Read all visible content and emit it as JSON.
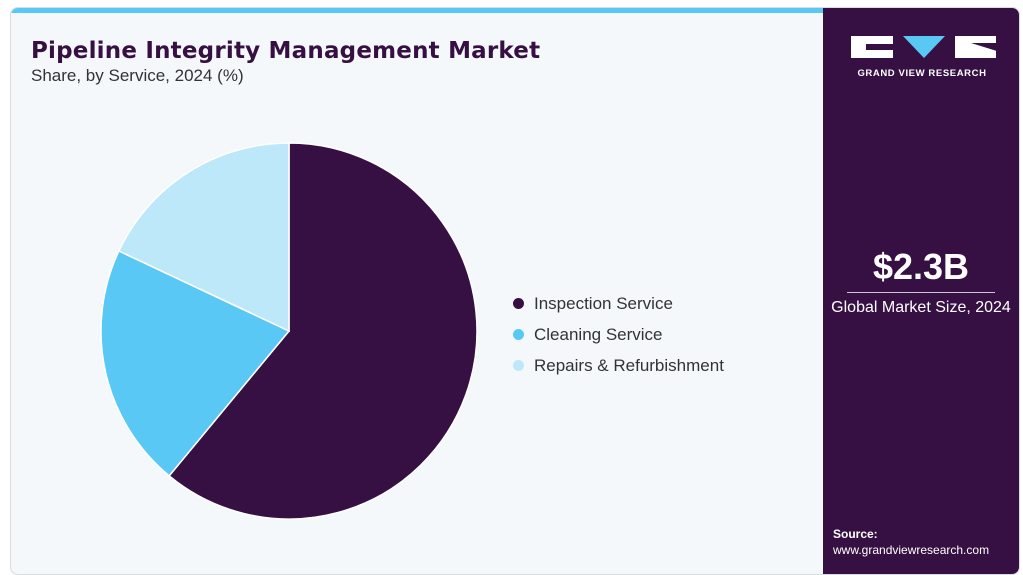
{
  "header": {
    "title": "Pipeline Integrity Management Market",
    "subtitle": "Share, by Service, 2024 (%)"
  },
  "chart_data": {
    "type": "pie",
    "title": "Pipeline Integrity Management Market",
    "subtitle": "Share, by Service, 2024 (%)",
    "categories": [
      "Inspection Service",
      "Cleaning Service",
      "Repairs & Refurbishment"
    ],
    "values": [
      61,
      21,
      18
    ],
    "colors": [
      "#371043",
      "#5ac8f5",
      "#bde8f9"
    ],
    "start_angle_deg": 0,
    "direction": "clockwise",
    "legend_position": "right"
  },
  "sidebar": {
    "brand": "GRAND VIEW RESEARCH",
    "market_size_value": "$2.3B",
    "market_size_label": "Global Market Size, 2024",
    "source_title": "Source:",
    "source_url": "www.grandviewresearch.com"
  },
  "colors": {
    "accent": "#5ac8f5",
    "brand": "#371043",
    "card_bg": "#f4f8fb"
  }
}
